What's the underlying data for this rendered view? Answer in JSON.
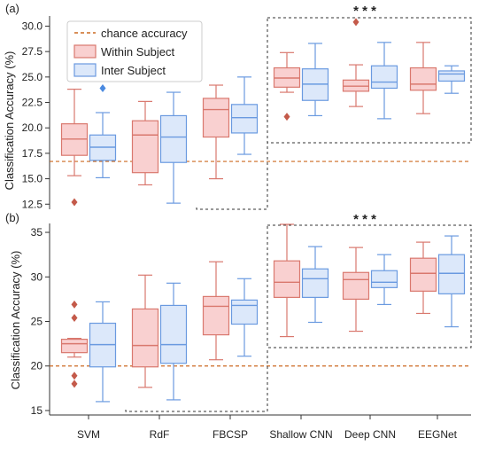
{
  "colors": {
    "within_fill": "#f9d0d0",
    "within_stroke": "#d9786e",
    "inter_fill": "#dce8fa",
    "inter_stroke": "#6a9ae0",
    "chance_line": "#cc6a22",
    "outlier_within": "#c45a4a",
    "outlier_inter": "#4a8ae0"
  },
  "chart_data": [
    {
      "type": "box",
      "panel_label": "(a)",
      "ylabel": "Classification Accuracy (%)",
      "ylim": [
        12.0,
        31.0
      ],
      "yticks": [
        "12.5",
        "15.0",
        "17.5",
        "20.0",
        "22.5",
        "25.0",
        "27.5",
        "30.0"
      ],
      "categories": [
        "SVM",
        "RdF",
        "FBCSP",
        "Shallow CNN",
        "Deep CNN",
        "EEGNet"
      ],
      "chance_accuracy": 16.7,
      "legend": {
        "position": "top-left",
        "entries": [
          "chance accuracy",
          "Within Subject",
          "Inter Subject"
        ]
      },
      "significance": "* * *",
      "series": [
        {
          "name": "Within Subject",
          "boxes": [
            {
              "whisker_low": 15.3,
              "q1": 17.3,
              "median": 18.9,
              "q3": 20.4,
              "whisker_high": 23.8,
              "outliers": [
                12.7
              ]
            },
            {
              "whisker_low": 14.4,
              "q1": 15.6,
              "median": 19.3,
              "q3": 20.7,
              "whisker_high": 22.6,
              "outliers": []
            },
            {
              "whisker_low": 15.0,
              "q1": 19.1,
              "median": 21.8,
              "q3": 22.9,
              "whisker_high": 24.2,
              "outliers": []
            },
            {
              "whisker_low": 23.5,
              "q1": 24.0,
              "median": 24.9,
              "q3": 25.9,
              "whisker_high": 27.4,
              "outliers": [
                21.1
              ]
            },
            {
              "whisker_low": 22.1,
              "q1": 23.6,
              "median": 24.1,
              "q3": 24.7,
              "whisker_high": 26.2,
              "outliers": [
                30.4
              ]
            },
            {
              "whisker_low": 21.4,
              "q1": 23.7,
              "median": 24.3,
              "q3": 25.9,
              "whisker_high": 28.4,
              "outliers": []
            }
          ]
        },
        {
          "name": "Inter Subject",
          "boxes": [
            {
              "whisker_low": 15.1,
              "q1": 16.8,
              "median": 18.1,
              "q3": 19.3,
              "whisker_high": 21.5,
              "outliers": [
                23.9
              ]
            },
            {
              "whisker_low": 12.6,
              "q1": 16.6,
              "median": 19.1,
              "q3": 21.2,
              "whisker_high": 23.5,
              "outliers": []
            },
            {
              "whisker_low": 17.4,
              "q1": 19.5,
              "median": 21.0,
              "q3": 22.3,
              "whisker_high": 25.0,
              "outliers": []
            },
            {
              "whisker_low": 21.2,
              "q1": 22.7,
              "median": 24.3,
              "q3": 25.8,
              "whisker_high": 28.3,
              "outliers": []
            },
            {
              "whisker_low": 20.9,
              "q1": 23.9,
              "median": 24.5,
              "q3": 26.1,
              "whisker_high": 28.4,
              "outliers": []
            },
            {
              "whisker_low": 23.4,
              "q1": 24.6,
              "median": 25.3,
              "q3": 25.6,
              "whisker_high": 26.1,
              "outliers": []
            }
          ]
        }
      ]
    },
    {
      "type": "box",
      "panel_label": "(b)",
      "ylabel": "Classification Accuracy (%)",
      "ylim": [
        14.5,
        36.0
      ],
      "yticks": [
        "15",
        "20",
        "25",
        "30",
        "35"
      ],
      "categories": [
        "SVM",
        "RdF",
        "FBCSP",
        "Shallow CNN",
        "Deep CNN",
        "EEGNet"
      ],
      "chance_accuracy": 20.0,
      "significance": "* * *",
      "series": [
        {
          "name": "Within Subject",
          "boxes": [
            {
              "whisker_low": 21.0,
              "q1": 21.5,
              "median": 22.5,
              "q3": 23.0,
              "whisker_high": 23.1,
              "outliers": [
                26.9,
                25.4,
                18.9,
                18.0
              ]
            },
            {
              "whisker_low": 17.6,
              "q1": 19.9,
              "median": 22.3,
              "q3": 26.4,
              "whisker_high": 30.2,
              "outliers": []
            },
            {
              "whisker_low": 20.7,
              "q1": 23.5,
              "median": 26.7,
              "q3": 27.8,
              "whisker_high": 31.7,
              "outliers": []
            },
            {
              "whisker_low": 23.3,
              "q1": 27.7,
              "median": 29.4,
              "q3": 31.8,
              "whisker_high": 35.9,
              "outliers": []
            },
            {
              "whisker_low": 23.9,
              "q1": 27.5,
              "median": 29.7,
              "q3": 30.5,
              "whisker_high": 33.3,
              "outliers": []
            },
            {
              "whisker_low": 25.9,
              "q1": 28.4,
              "median": 30.4,
              "q3": 32.1,
              "whisker_high": 33.9,
              "outliers": []
            }
          ]
        },
        {
          "name": "Inter Subject",
          "boxes": [
            {
              "whisker_low": 16.0,
              "q1": 19.9,
              "median": 22.4,
              "q3": 24.8,
              "whisker_high": 27.2,
              "outliers": []
            },
            {
              "whisker_low": 16.2,
              "q1": 20.3,
              "median": 22.4,
              "q3": 26.8,
              "whisker_high": 29.3,
              "outliers": []
            },
            {
              "whisker_low": 21.1,
              "q1": 24.7,
              "median": 26.8,
              "q3": 27.4,
              "whisker_high": 29.8,
              "outliers": []
            },
            {
              "whisker_low": 24.9,
              "q1": 27.7,
              "median": 29.8,
              "q3": 30.9,
              "whisker_high": 33.4,
              "outliers": []
            },
            {
              "whisker_low": 26.9,
              "q1": 28.8,
              "median": 29.4,
              "q3": 30.7,
              "whisker_high": 32.5,
              "outliers": []
            },
            {
              "whisker_low": 24.4,
              "q1": 28.1,
              "median": 30.4,
              "q3": 32.5,
              "whisker_high": 34.6,
              "outliers": []
            }
          ]
        }
      ]
    }
  ]
}
